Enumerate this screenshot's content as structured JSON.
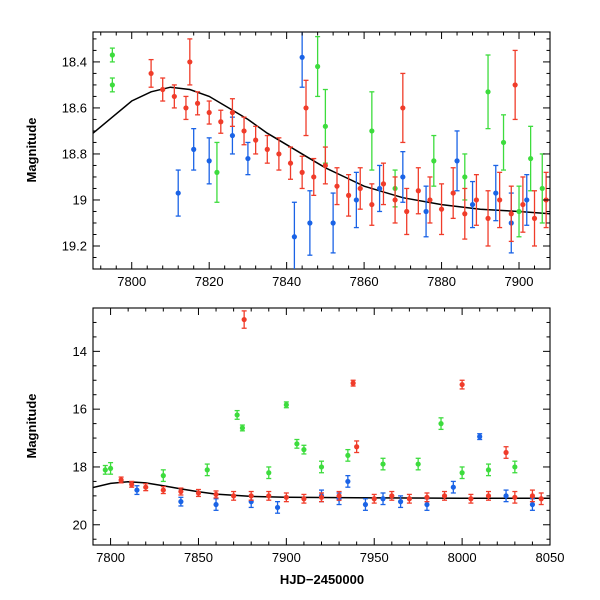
{
  "colors": {
    "red": "#f03c2a",
    "blue": "#1a63e6",
    "green": "#3ddc3d",
    "model": "#000000"
  },
  "chart_data": [
    {
      "type": "scatter",
      "panel": "top",
      "xlabel": "",
      "ylabel": "Magnitude",
      "xlim": [
        7790,
        7908
      ],
      "ylim": [
        19.3,
        18.27
      ],
      "y_inverted": true,
      "x_ticks": [
        7800,
        7820,
        7840,
        7860,
        7880,
        7900
      ],
      "y_ticks": [
        18.4,
        18.6,
        18.8,
        19,
        19.2
      ],
      "grid": false,
      "series": [
        {
          "color_key": "green",
          "points": [
            [
              7795,
              18.37,
              0.03
            ],
            [
              7795,
              18.5,
              0.03
            ],
            [
              7822,
              18.88,
              0.13
            ],
            [
              7848,
              18.42,
              0.13
            ],
            [
              7850,
              18.68,
              0.16
            ],
            [
              7862,
              18.7,
              0.17
            ],
            [
              7868,
              18.95,
              0.08
            ],
            [
              7878,
              18.83,
              0.11
            ],
            [
              7886,
              18.9,
              0.1
            ],
            [
              7892,
              18.53,
              0.16
            ],
            [
              7896,
              18.75,
              0.12
            ],
            [
              7900,
              19.05,
              0.11
            ],
            [
              7903,
              18.82,
              0.14
            ],
            [
              7906,
              18.95,
              0.15
            ]
          ]
        },
        {
          "color_key": "blue",
          "points": [
            [
              7812,
              18.97,
              0.1
            ],
            [
              7816,
              18.78,
              0.09
            ],
            [
              7820,
              18.83,
              0.1
            ],
            [
              7826,
              18.72,
              0.08
            ],
            [
              7830,
              18.82,
              0.07
            ],
            [
              7842,
              19.16,
              0.15
            ],
            [
              7844,
              18.38,
              0.13
            ],
            [
              7846,
              19.1,
              0.14
            ],
            [
              7852,
              19.1,
              0.13
            ],
            [
              7858,
              19.0,
              0.12
            ],
            [
              7864,
              18.95,
              0.1
            ],
            [
              7870,
              18.9,
              0.11
            ],
            [
              7876,
              19.05,
              0.11
            ],
            [
              7884,
              18.83,
              0.13
            ],
            [
              7888,
              19.02,
              0.1
            ],
            [
              7894,
              18.97,
              0.12
            ],
            [
              7898,
              19.1,
              0.13
            ],
            [
              7902,
              19.0,
              0.11
            ]
          ]
        },
        {
          "color_key": "red",
          "points": [
            [
              7805,
              18.45,
              0.06
            ],
            [
              7808,
              18.52,
              0.05
            ],
            [
              7811,
              18.55,
              0.05
            ],
            [
              7814,
              18.6,
              0.05
            ],
            [
              7817,
              18.58,
              0.05
            ],
            [
              7820,
              18.62,
              0.05
            ],
            [
              7823,
              18.66,
              0.05
            ],
            [
              7826,
              18.62,
              0.06
            ],
            [
              7829,
              18.7,
              0.06
            ],
            [
              7832,
              18.74,
              0.06
            ],
            [
              7835,
              18.78,
              0.06
            ],
            [
              7838,
              18.8,
              0.07
            ],
            [
              7841,
              18.84,
              0.07
            ],
            [
              7844,
              18.88,
              0.07
            ],
            [
              7847,
              18.9,
              0.08
            ],
            [
              7850,
              18.85,
              0.08
            ],
            [
              7853,
              18.94,
              0.08
            ],
            [
              7856,
              18.98,
              0.09
            ],
            [
              7859,
              18.95,
              0.09
            ],
            [
              7862,
              19.02,
              0.09
            ],
            [
              7865,
              18.93,
              0.09
            ],
            [
              7868,
              19.0,
              0.1
            ],
            [
              7871,
              19.05,
              0.1
            ],
            [
              7874,
              18.96,
              0.1
            ],
            [
              7877,
              19.0,
              0.1
            ],
            [
              7880,
              19.04,
              0.11
            ],
            [
              7883,
              18.97,
              0.11
            ],
            [
              7886,
              19.06,
              0.11
            ],
            [
              7889,
              19.0,
              0.11
            ],
            [
              7892,
              19.08,
              0.12
            ],
            [
              7895,
              19.0,
              0.12
            ],
            [
              7898,
              19.06,
              0.12
            ],
            [
              7901,
              19.02,
              0.12
            ],
            [
              7904,
              19.08,
              0.12
            ],
            [
              7907,
              19.0,
              0.12
            ],
            [
              7815,
              18.4,
              0.1
            ],
            [
              7845,
              18.6,
              0.12
            ],
            [
              7870,
              18.6,
              0.15
            ],
            [
              7899,
              18.5,
              0.15
            ]
          ]
        }
      ],
      "model_curve": [
        [
          7790,
          18.71
        ],
        [
          7795,
          18.64
        ],
        [
          7800,
          18.57
        ],
        [
          7805,
          18.53
        ],
        [
          7810,
          18.51
        ],
        [
          7815,
          18.52
        ],
        [
          7820,
          18.55
        ],
        [
          7825,
          18.6
        ],
        [
          7830,
          18.65
        ],
        [
          7835,
          18.71
        ],
        [
          7840,
          18.76
        ],
        [
          7845,
          18.81
        ],
        [
          7850,
          18.86
        ],
        [
          7855,
          18.9
        ],
        [
          7860,
          18.94
        ],
        [
          7870,
          18.99
        ],
        [
          7880,
          19.02
        ],
        [
          7890,
          19.04
        ],
        [
          7900,
          19.05
        ],
        [
          7908,
          19.06
        ]
      ]
    },
    {
      "type": "scatter",
      "panel": "bottom",
      "xlabel": "HJD−2450000",
      "ylabel": "Magnitude",
      "xlim": [
        7790,
        8050
      ],
      "ylim": [
        20.7,
        12.5
      ],
      "y_inverted": true,
      "x_ticks": [
        7800,
        7850,
        7900,
        7950,
        8000,
        8050
      ],
      "y_ticks": [
        14,
        16,
        18,
        20
      ],
      "grid": false,
      "series": [
        {
          "color_key": "green",
          "points": [
            [
              7797,
              18.1,
              0.15
            ],
            [
              7800,
              18.05,
              0.2
            ],
            [
              7830,
              18.3,
              0.2
            ],
            [
              7855,
              18.1,
              0.2
            ],
            [
              7872,
              16.2,
              0.15
            ],
            [
              7875,
              16.65,
              0.1
            ],
            [
              7890,
              18.2,
              0.2
            ],
            [
              7900,
              15.85,
              0.1
            ],
            [
              7906,
              17.2,
              0.15
            ],
            [
              7910,
              17.4,
              0.15
            ],
            [
              7920,
              18.0,
              0.2
            ],
            [
              7935,
              17.6,
              0.2
            ],
            [
              7955,
              17.9,
              0.2
            ],
            [
              7975,
              17.9,
              0.2
            ],
            [
              7988,
              16.5,
              0.2
            ],
            [
              8000,
              18.2,
              0.2
            ],
            [
              8015,
              18.1,
              0.2
            ],
            [
              8030,
              18.0,
              0.2
            ]
          ]
        },
        {
          "color_key": "blue",
          "points": [
            [
              7815,
              18.8,
              0.15
            ],
            [
              7840,
              19.2,
              0.15
            ],
            [
              7860,
              19.3,
              0.2
            ],
            [
              7880,
              19.2,
              0.2
            ],
            [
              7895,
              19.4,
              0.2
            ],
            [
              7920,
              19.0,
              0.2
            ],
            [
              7930,
              19.1,
              0.2
            ],
            [
              7945,
              19.3,
              0.2
            ],
            [
              7955,
              19.1,
              0.2
            ],
            [
              7965,
              19.2,
              0.2
            ],
            [
              7980,
              19.3,
              0.2
            ],
            [
              7995,
              18.7,
              0.2
            ],
            [
              8010,
              16.95,
              0.1
            ],
            [
              8025,
              19.0,
              0.2
            ],
            [
              8040,
              19.3,
              0.2
            ],
            [
              7935,
              18.5,
              0.2
            ]
          ]
        },
        {
          "color_key": "red",
          "points": [
            [
              7806,
              18.45,
              0.1
            ],
            [
              7812,
              18.6,
              0.1
            ],
            [
              7820,
              18.7,
              0.12
            ],
            [
              7830,
              18.8,
              0.12
            ],
            [
              7840,
              18.85,
              0.12
            ],
            [
              7850,
              18.9,
              0.12
            ],
            [
              7860,
              18.95,
              0.12
            ],
            [
              7870,
              19.0,
              0.15
            ],
            [
              7876,
              12.9,
              0.3
            ],
            [
              7880,
              19.0,
              0.15
            ],
            [
              7890,
              19.0,
              0.15
            ],
            [
              7900,
              19.05,
              0.15
            ],
            [
              7910,
              19.1,
              0.15
            ],
            [
              7920,
              19.05,
              0.15
            ],
            [
              7930,
              19.0,
              0.15
            ],
            [
              7938,
              15.1,
              0.1
            ],
            [
              7940,
              17.3,
              0.2
            ],
            [
              7950,
              19.1,
              0.15
            ],
            [
              7960,
              19.0,
              0.15
            ],
            [
              7970,
              19.1,
              0.15
            ],
            [
              7980,
              19.05,
              0.15
            ],
            [
              7990,
              19.0,
              0.15
            ],
            [
              8000,
              15.15,
              0.15
            ],
            [
              8005,
              19.1,
              0.15
            ],
            [
              8015,
              19.0,
              0.15
            ],
            [
              8025,
              17.5,
              0.2
            ],
            [
              8030,
              19.05,
              0.2
            ],
            [
              8040,
              19.0,
              0.2
            ],
            [
              8045,
              19.1,
              0.2
            ]
          ]
        }
      ],
      "model_curve": [
        [
          7790,
          18.71
        ],
        [
          7800,
          18.57
        ],
        [
          7810,
          18.51
        ],
        [
          7820,
          18.55
        ],
        [
          7830,
          18.65
        ],
        [
          7840,
          18.76
        ],
        [
          7850,
          18.86
        ],
        [
          7860,
          18.94
        ],
        [
          7880,
          19.02
        ],
        [
          7900,
          19.05
        ],
        [
          7950,
          19.07
        ],
        [
          8000,
          19.08
        ],
        [
          8050,
          19.08
        ]
      ]
    }
  ]
}
